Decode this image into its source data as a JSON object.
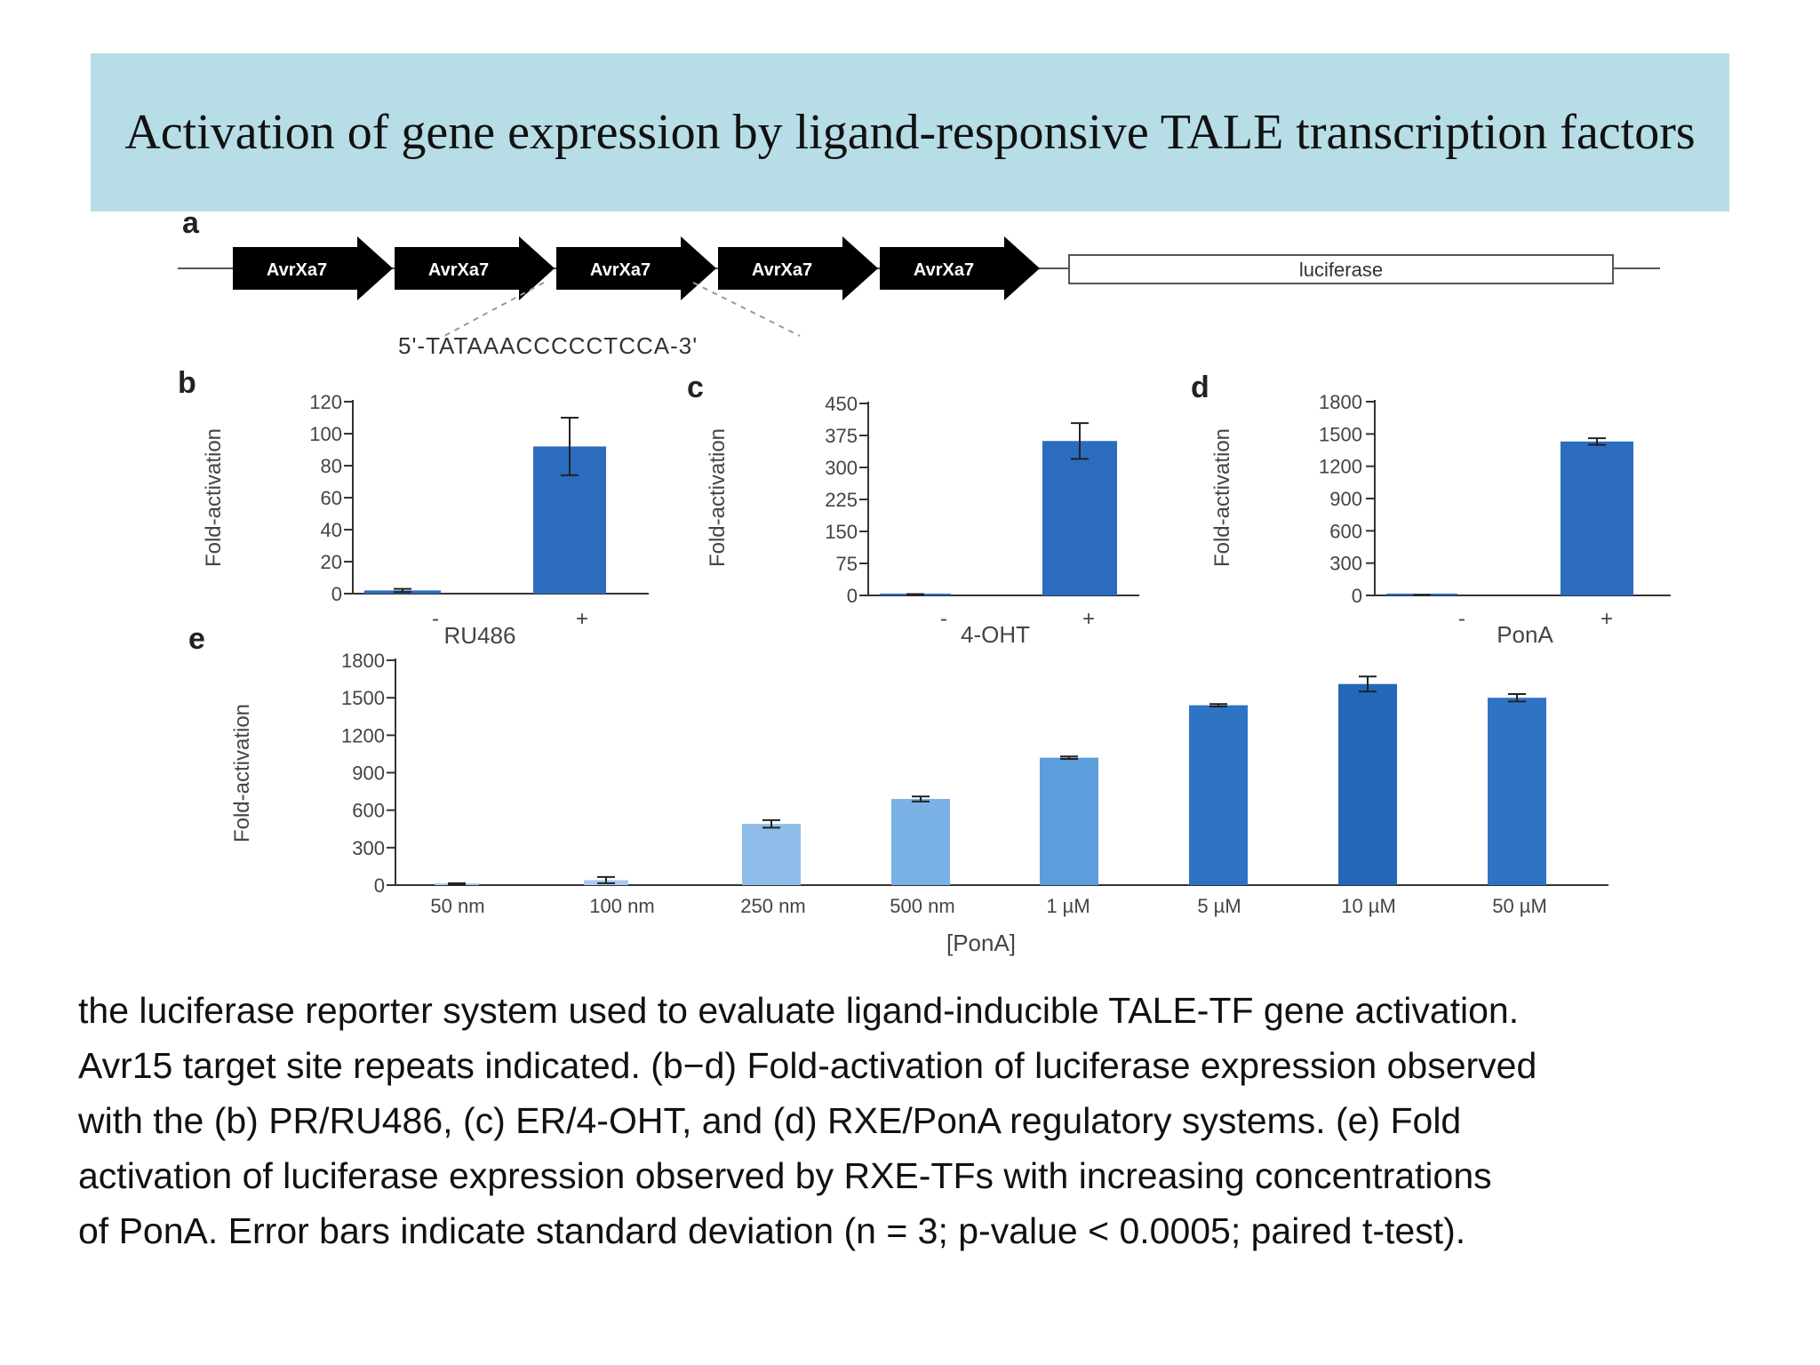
{
  "slide": {
    "title": "Activation of gene expression by ligand-responsive TALE transcription factors",
    "title_bg": "#b7dde6"
  },
  "panel_a": {
    "label": "a",
    "repeats": [
      "AvrXa7",
      "AvrXa7",
      "AvrXa7",
      "AvrXa7",
      "AvrXa7"
    ],
    "reporter": "luciferase",
    "sequence": "5'-TATAAACCCCCTCCA-3'"
  },
  "chart_data": [
    {
      "type": "bar",
      "panel": "b",
      "categories": [
        "-",
        "+"
      ],
      "values": [
        2,
        92
      ],
      "errors": [
        1,
        18
      ],
      "xlabel": "RU486",
      "ylabel": "Fold-activation",
      "ylim": [
        0,
        120
      ],
      "yticks": [
        0,
        20,
        40,
        60,
        80,
        100,
        120
      ],
      "colors": [
        "#2b6cbf",
        "#2b6cbf"
      ]
    },
    {
      "type": "bar",
      "panel": "c",
      "categories": [
        "-",
        "+"
      ],
      "values": [
        2,
        362
      ],
      "errors": [
        1,
        42
      ],
      "xlabel": "4-OHT",
      "ylabel": "Fold-activation",
      "ylim": [
        0,
        450
      ],
      "yticks": [
        0,
        75,
        150,
        225,
        300,
        375,
        450
      ],
      "colors": [
        "#2b6cbf",
        "#2b6cbf"
      ]
    },
    {
      "type": "bar",
      "panel": "d",
      "categories": [
        "-",
        "+"
      ],
      "values": [
        3,
        1430
      ],
      "errors": [
        1,
        30
      ],
      "xlabel": "PonA",
      "ylabel": "Fold-activation",
      "ylim": [
        0,
        1800
      ],
      "yticks": [
        0,
        300,
        600,
        900,
        1200,
        1500,
        1800
      ],
      "colors": [
        "#2b6cbf",
        "#2b6cbf"
      ]
    },
    {
      "type": "bar",
      "panel": "e",
      "categories": [
        "50 nm",
        "100 nm",
        "250 nm",
        "500 nm",
        "1 µM",
        "5 µM",
        "10 µM",
        "50 µM"
      ],
      "values": [
        10,
        40,
        490,
        690,
        1020,
        1440,
        1610,
        1500
      ],
      "errors": [
        5,
        25,
        30,
        20,
        10,
        10,
        60,
        30
      ],
      "xlabel": "[PonA]",
      "ylabel": "Fold-activation",
      "ylim": [
        0,
        1800
      ],
      "yticks": [
        0,
        300,
        600,
        900,
        1200,
        1500,
        1800
      ],
      "colors": [
        "#a9cbee",
        "#a9cbee",
        "#8fbde9",
        "#7ab1e6",
        "#5c9ddc",
        "#2f74c4",
        "#2467b8",
        "#2f74c4"
      ]
    }
  ],
  "caption": [
    "the luciferase reporter system used to evaluate ligand-inducible TALE-TF gene activation.",
    "Avr15 target site repeats indicated. (b−d) Fold-activation of luciferase expression observed",
    "with the (b) PR/RU486, (c) ER/4-OHT, and (d) RXE/PonA regulatory systems. (e) Fold",
    "activation of luciferase expression observed by RXE-TFs with increasing concentrations",
    "of PonA. Error bars indicate standard deviation (n = 3; p-value < 0.0005; paired t-test)."
  ]
}
